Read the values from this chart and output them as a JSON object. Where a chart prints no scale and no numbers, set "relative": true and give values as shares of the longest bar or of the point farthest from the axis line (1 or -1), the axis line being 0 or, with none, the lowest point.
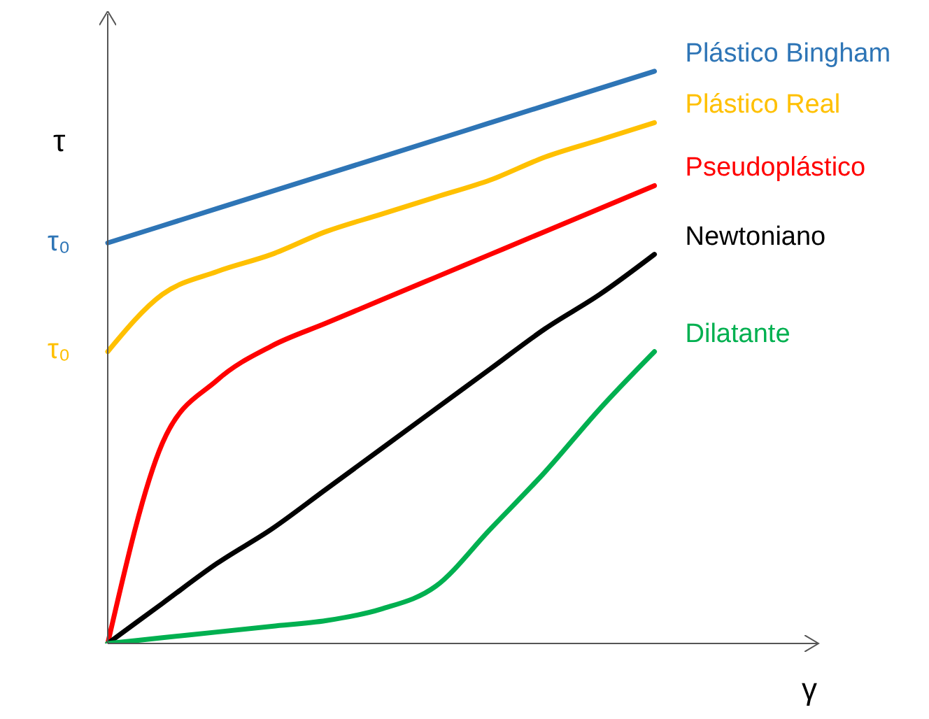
{
  "chart_data": {
    "type": "line",
    "relative": true,
    "xlabel": "γ",
    "ylabel": "τ",
    "categories": [
      null,
      null,
      null,
      null,
      null,
      null,
      null,
      null,
      null,
      null,
      null,
      null,
      null,
      null
    ],
    "series": [
      {
        "name": "Plástico Bingham",
        "color": "#2e75b6",
        "values": [
          0.7,
          0.73,
          0.76,
          0.79,
          0.82,
          0.85,
          0.88,
          0.91,
          0.94,
          0.97,
          1,
          null,
          null,
          null
        ]
      },
      {
        "name": "Plástico Real",
        "color": "#ffc000",
        "values": [
          0.51,
          0.61,
          0.65,
          0.68,
          0.72,
          0.75,
          0.78,
          0.81,
          0.85,
          0.88,
          0.91,
          null,
          null,
          null
        ]
      },
      {
        "name": "Pseudoplástico",
        "color": "#ff0000",
        "values": [
          0,
          0.35,
          0.46,
          0.52,
          0.56,
          0.6,
          0.64,
          0.68,
          0.72,
          0.76,
          0.8,
          null,
          null,
          null
        ]
      },
      {
        "name": "Newtoniano",
        "color": "#000000",
        "values": [
          0,
          0.07,
          0.14,
          0.2,
          0.27,
          0.34,
          0.41,
          0.48,
          0.55,
          0.61,
          0.68,
          null,
          null,
          null
        ]
      },
      {
        "name": "Dilatante",
        "color": "#00b050",
        "values": [
          0,
          0.01,
          0.02,
          0.03,
          0.04,
          0.06,
          0.1,
          0.2,
          0.3,
          0.41,
          0.51,
          null,
          null,
          null
        ]
      }
    ],
    "annotations": [
      "τ₀",
      "τ₀"
    ],
    "marker": "none",
    "line_style": "solid",
    "grid": false,
    "legend": false
  }
}
